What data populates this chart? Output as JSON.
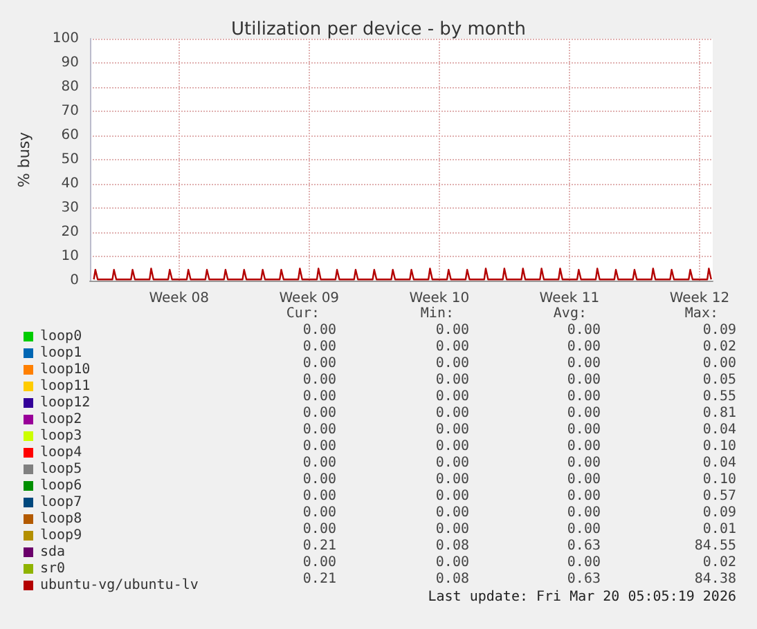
{
  "chart_data": {
    "type": "line",
    "title": "Utilization per device - by month",
    "ylabel": "% busy",
    "xlim": [
      "2026-02-14T17:00",
      "2026-03-20T05:00"
    ],
    "xticks": [
      {
        "value": "2026-02-19T12:00",
        "label": "Week 08"
      },
      {
        "value": "2026-02-26T12:00",
        "label": "Week 09"
      },
      {
        "value": "2026-03-05T12:00",
        "label": "Week 10"
      },
      {
        "value": "2026-03-12T12:00",
        "label": "Week 11"
      },
      {
        "value": "2026-03-19T12:00",
        "label": "Week 12"
      }
    ],
    "ylim": [
      0,
      100
    ],
    "yticks": [
      0,
      10,
      20,
      30,
      40,
      50,
      60,
      70,
      80,
      90,
      100
    ],
    "grid": true,
    "legend": "bottom left",
    "line_style": "solid",
    "marker": "none",
    "series": [
      {
        "name": "loop0",
        "color": "#00cc00"
      },
      {
        "name": "loop1",
        "color": "#0066b3"
      },
      {
        "name": "loop10",
        "color": "#ff8000"
      },
      {
        "name": "loop11",
        "color": "#ffcc00"
      },
      {
        "name": "loop12",
        "color": "#330099"
      },
      {
        "name": "loop2",
        "color": "#990099"
      },
      {
        "name": "loop3",
        "color": "#ccff00"
      },
      {
        "name": "loop4",
        "color": "#ff0000"
      },
      {
        "name": "loop5",
        "color": "#808080"
      },
      {
        "name": "loop6",
        "color": "#008f00"
      },
      {
        "name": "loop7",
        "color": "#00487d"
      },
      {
        "name": "loop8",
        "color": "#b35a00"
      },
      {
        "name": "loop9",
        "color": "#b38f00"
      },
      {
        "name": "sda",
        "color": "#6b006b"
      },
      {
        "name": "sr0",
        "color": "#8fb300"
      },
      {
        "name": "ubuntu-vg/ubuntu-lv",
        "color": "#b30000",
        "x": [
          "2026-02-14T22:00",
          "2026-02-15T00:00",
          "2026-02-15T03:00",
          "2026-02-15T22:00",
          "2026-02-16T00:00",
          "2026-02-16T03:00",
          "2026-02-16T22:00",
          "2026-02-17T00:00",
          "2026-02-17T03:00",
          "2026-02-17T22:00",
          "2026-02-18T00:00",
          "2026-02-18T03:00",
          "2026-02-18T22:00",
          "2026-02-19T00:00",
          "2026-02-19T03:00",
          "2026-02-19T22:00",
          "2026-02-20T00:00",
          "2026-02-20T03:00",
          "2026-02-20T22:00",
          "2026-02-21T00:00",
          "2026-02-21T03:00",
          "2026-02-21T22:00",
          "2026-02-22T00:00",
          "2026-02-22T03:00",
          "2026-02-22T22:00",
          "2026-02-23T00:00",
          "2026-02-23T03:00",
          "2026-02-23T22:00",
          "2026-02-24T00:00",
          "2026-02-24T03:00",
          "2026-02-24T22:00",
          "2026-02-25T00:00",
          "2026-02-25T03:00",
          "2026-02-25T22:00",
          "2026-02-26T00:00",
          "2026-02-26T03:00",
          "2026-02-26T22:00",
          "2026-02-27T00:00",
          "2026-02-27T03:00",
          "2026-02-27T22:00",
          "2026-02-28T00:00",
          "2026-02-28T03:00",
          "2026-02-28T22:00",
          "2026-03-01T00:00",
          "2026-03-01T03:00",
          "2026-03-01T22:00",
          "2026-03-02T00:00",
          "2026-03-02T03:00",
          "2026-03-02T22:00",
          "2026-03-03T00:00",
          "2026-03-03T03:00",
          "2026-03-03T22:00",
          "2026-03-04T00:00",
          "2026-03-04T03:00",
          "2026-03-04T22:00",
          "2026-03-05T00:00",
          "2026-03-05T03:00",
          "2026-03-05T22:00",
          "2026-03-06T00:00",
          "2026-03-06T03:00",
          "2026-03-06T22:00",
          "2026-03-07T00:00",
          "2026-03-07T03:00",
          "2026-03-07T22:00",
          "2026-03-08T00:00",
          "2026-03-08T03:00",
          "2026-03-08T22:00",
          "2026-03-09T00:00",
          "2026-03-09T03:00",
          "2026-03-09T22:00",
          "2026-03-10T00:00",
          "2026-03-10T03:00",
          "2026-03-10T22:00",
          "2026-03-11T00:00",
          "2026-03-11T03:00",
          "2026-03-11T22:00",
          "2026-03-12T00:00",
          "2026-03-12T03:00",
          "2026-03-12T22:00",
          "2026-03-13T00:00",
          "2026-03-13T03:00",
          "2026-03-13T22:00",
          "2026-03-14T00:00",
          "2026-03-14T03:00",
          "2026-03-14T22:00",
          "2026-03-15T00:00",
          "2026-03-15T03:00",
          "2026-03-15T22:00",
          "2026-03-16T00:00",
          "2026-03-16T03:00",
          "2026-03-16T22:00",
          "2026-03-17T00:00",
          "2026-03-17T03:00",
          "2026-03-17T22:00",
          "2026-03-18T00:00",
          "2026-03-18T03:00",
          "2026-03-18T22:00",
          "2026-03-19T00:00",
          "2026-03-19T03:00",
          "2026-03-19T22:00",
          "2026-03-20T00:00",
          "2026-03-20T03:00"
        ],
        "values": [
          0.5,
          4.5,
          0.5,
          0.5,
          4.5,
          0.5,
          0.5,
          4.5,
          0.5,
          0.5,
          5,
          0.5,
          0.5,
          4.5,
          0.5,
          0.5,
          4.5,
          0.5,
          0.5,
          4.5,
          0.5,
          0.5,
          4.5,
          0.5,
          0.5,
          4.5,
          0.5,
          0.5,
          4.5,
          0.5,
          0.5,
          4.5,
          0.5,
          0.5,
          5,
          0.5,
          0.5,
          5,
          0.5,
          0.5,
          4.5,
          0.5,
          0.5,
          4.5,
          0.5,
          0.5,
          4.5,
          0.5,
          0.5,
          4.5,
          0.5,
          0.5,
          4.5,
          0.5,
          0.5,
          5,
          0.5,
          0.5,
          4.5,
          0.5,
          0.5,
          4.5,
          0.5,
          0.5,
          5,
          0.5,
          0.5,
          5,
          0.5,
          0.5,
          5,
          0.5,
          0.5,
          5,
          0.5,
          0.5,
          5,
          0.5,
          0.5,
          4.5,
          0.5,
          0.5,
          5,
          0.5,
          0.5,
          4.5,
          0.5,
          0.5,
          4.5,
          0.5,
          0.5,
          5,
          0.5,
          0.5,
          4.5,
          0.5,
          0.5,
          4.5,
          0.5,
          0.5,
          5,
          0.5
        ]
      }
    ],
    "annotations": [
      "Cur:",
      "Min:",
      "Avg:",
      "Max:",
      "0.00",
      "0.00",
      "0.00",
      "0.09",
      "0.00",
      "0.00",
      "0.00",
      "0.02",
      "0.00",
      "0.00",
      "0.00",
      "0.00",
      "0.00",
      "0.00",
      "0.00",
      "0.05",
      "0.00",
      "0.00",
      "0.00",
      "0.55",
      "0.00",
      "0.00",
      "0.00",
      "0.81",
      "0.00",
      "0.00",
      "0.00",
      "0.04",
      "0.00",
      "0.00",
      "0.00",
      "0.10",
      "0.00",
      "0.00",
      "0.00",
      "0.04",
      "0.00",
      "0.00",
      "0.00",
      "0.10",
      "0.00",
      "0.00",
      "0.00",
      "0.57",
      "0.00",
      "0.00",
      "0.00",
      "0.09",
      "0.00",
      "0.00",
      "0.00",
      "0.01",
      "0.21",
      "0.08",
      "0.63",
      "84.55",
      "0.00",
      "0.00",
      "0.00",
      "0.02",
      "0.21",
      "0.08",
      "0.63",
      "84.38",
      "Last update: Fri Mar 20 05:05:19 2026"
    ]
  }
}
